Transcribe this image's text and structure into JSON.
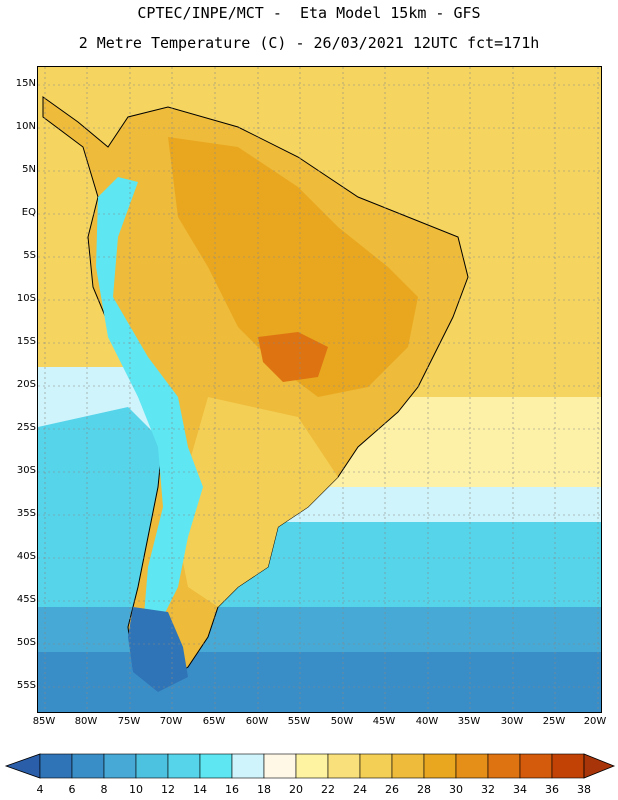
{
  "title_line1": "CPTEC/INPE/MCT -  Eta Model 15km - GFS",
  "title_line2": "2 Metre Temperature (C) - 26/03/2021 12UTC fct=171h",
  "lat_labels": [
    "15N",
    "10N",
    "5N",
    "EQ",
    "5S",
    "10S",
    "15S",
    "20S",
    "25S",
    "30S",
    "35S",
    "40S",
    "45S",
    "50S",
    "55S"
  ],
  "lon_labels": [
    "85W",
    "80W",
    "75W",
    "70W",
    "65W",
    "60W",
    "55W",
    "50W",
    "45W",
    "40W",
    "35W",
    "30W",
    "25W",
    "20W"
  ],
  "colorbar": {
    "labels": [
      "4",
      "6",
      "8",
      "10",
      "12",
      "14",
      "16",
      "18",
      "20",
      "22",
      "24",
      "26",
      "28",
      "30",
      "32",
      "34",
      "36",
      "38"
    ],
    "colors": [
      "#2b5ea8",
      "#2f74b6",
      "#3a8ec8",
      "#46a9d6",
      "#4dc1e0",
      "#55d4ea",
      "#5ee7f2",
      "#cff4fb",
      "#fff8e6",
      "#fdf3a0",
      "#f9e07a",
      "#f4cf55",
      "#eebb3a",
      "#e9a71f",
      "#e58f18",
      "#de7311",
      "#d45a0c",
      "#c24206",
      "#a8350a"
    ]
  },
  "colors": {
    "ocean_warm": "#f5d560",
    "ocean_cool": "#fdf1a8",
    "ocean_cold": "#55d4ea",
    "ocean_deep": "#3a8ec8",
    "land_hot": "#e9a71f",
    "land_warm": "#eebb3a",
    "land_mild": "#f4cf55",
    "andes": "#5ee7f2",
    "patagonia": "#2f74b6"
  }
}
